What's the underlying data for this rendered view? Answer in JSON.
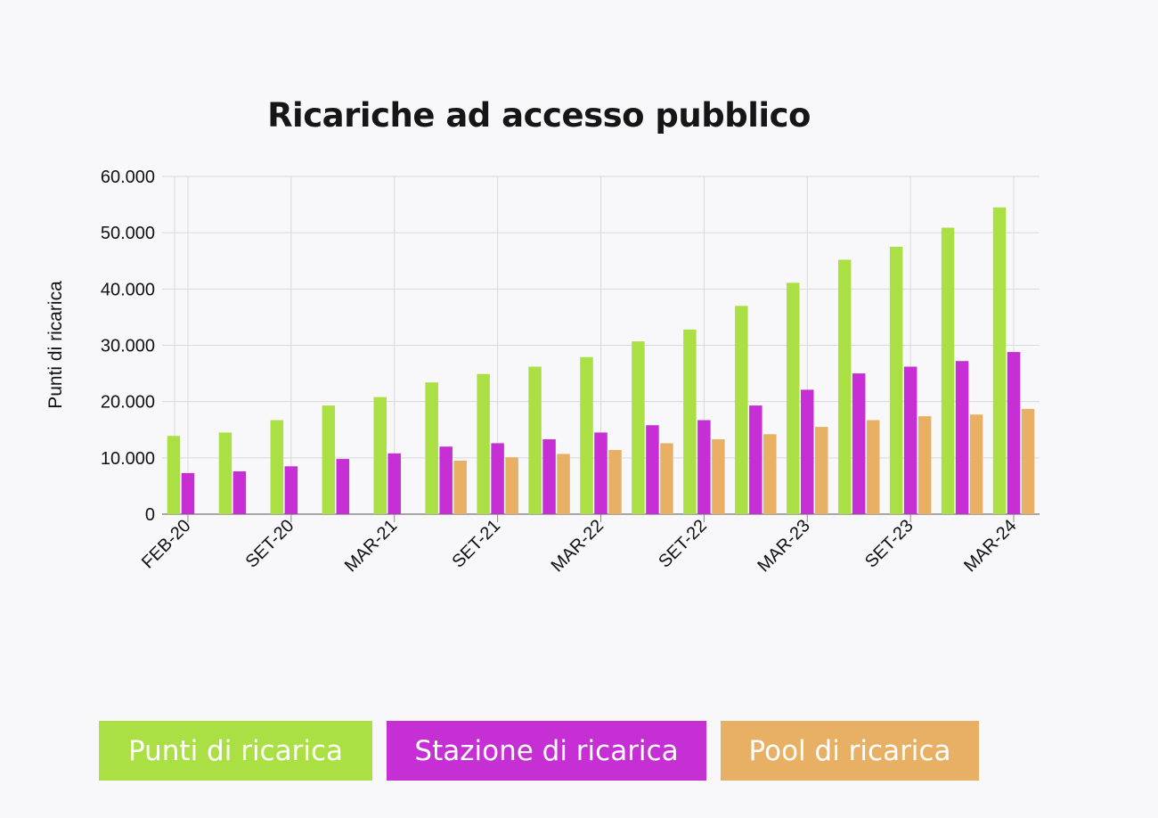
{
  "chart_data": {
    "type": "bar",
    "title": "Ricariche ad accesso pubblico",
    "xlabel": "",
    "ylabel": "Punti di ricarica",
    "ylim": [
      0,
      60000
    ],
    "yticks": [
      0,
      10000,
      20000,
      30000,
      40000,
      50000,
      60000
    ],
    "ytick_labels": [
      "0",
      "10.000",
      "20.000",
      "30.000",
      "40.000",
      "50.000",
      "60.000"
    ],
    "xtick_labels": [
      "FEB-20",
      "SET-20",
      "MAR-21",
      "SET-21",
      "MAR-22",
      "SET-22",
      "MAR-23",
      "SET-23",
      "MAR-24"
    ],
    "grid": true,
    "legend_position": "bottom",
    "series": [
      {
        "name": "Punti di ricarica",
        "color": "#abe045",
        "values": [
          13900,
          14500,
          16700,
          19300,
          20800,
          23400,
          24900,
          26200,
          27900,
          30700,
          32800,
          37000,
          41100,
          45200,
          47500,
          50900,
          54500
        ]
      },
      {
        "name": "Stazione di ricarica",
        "color": "#c62fd4",
        "values": [
          7300,
          7600,
          8500,
          9800,
          10800,
          12000,
          12600,
          13300,
          14500,
          15800,
          16700,
          19300,
          22100,
          25000,
          26200,
          27200,
          28800
        ]
      },
      {
        "name": "Pool di ricarica",
        "color": "#e8b064",
        "values": [
          null,
          null,
          null,
          null,
          null,
          9500,
          10100,
          10700,
          11400,
          12600,
          13300,
          14200,
          15500,
          16700,
          17400,
          17700,
          18700
        ]
      }
    ]
  }
}
